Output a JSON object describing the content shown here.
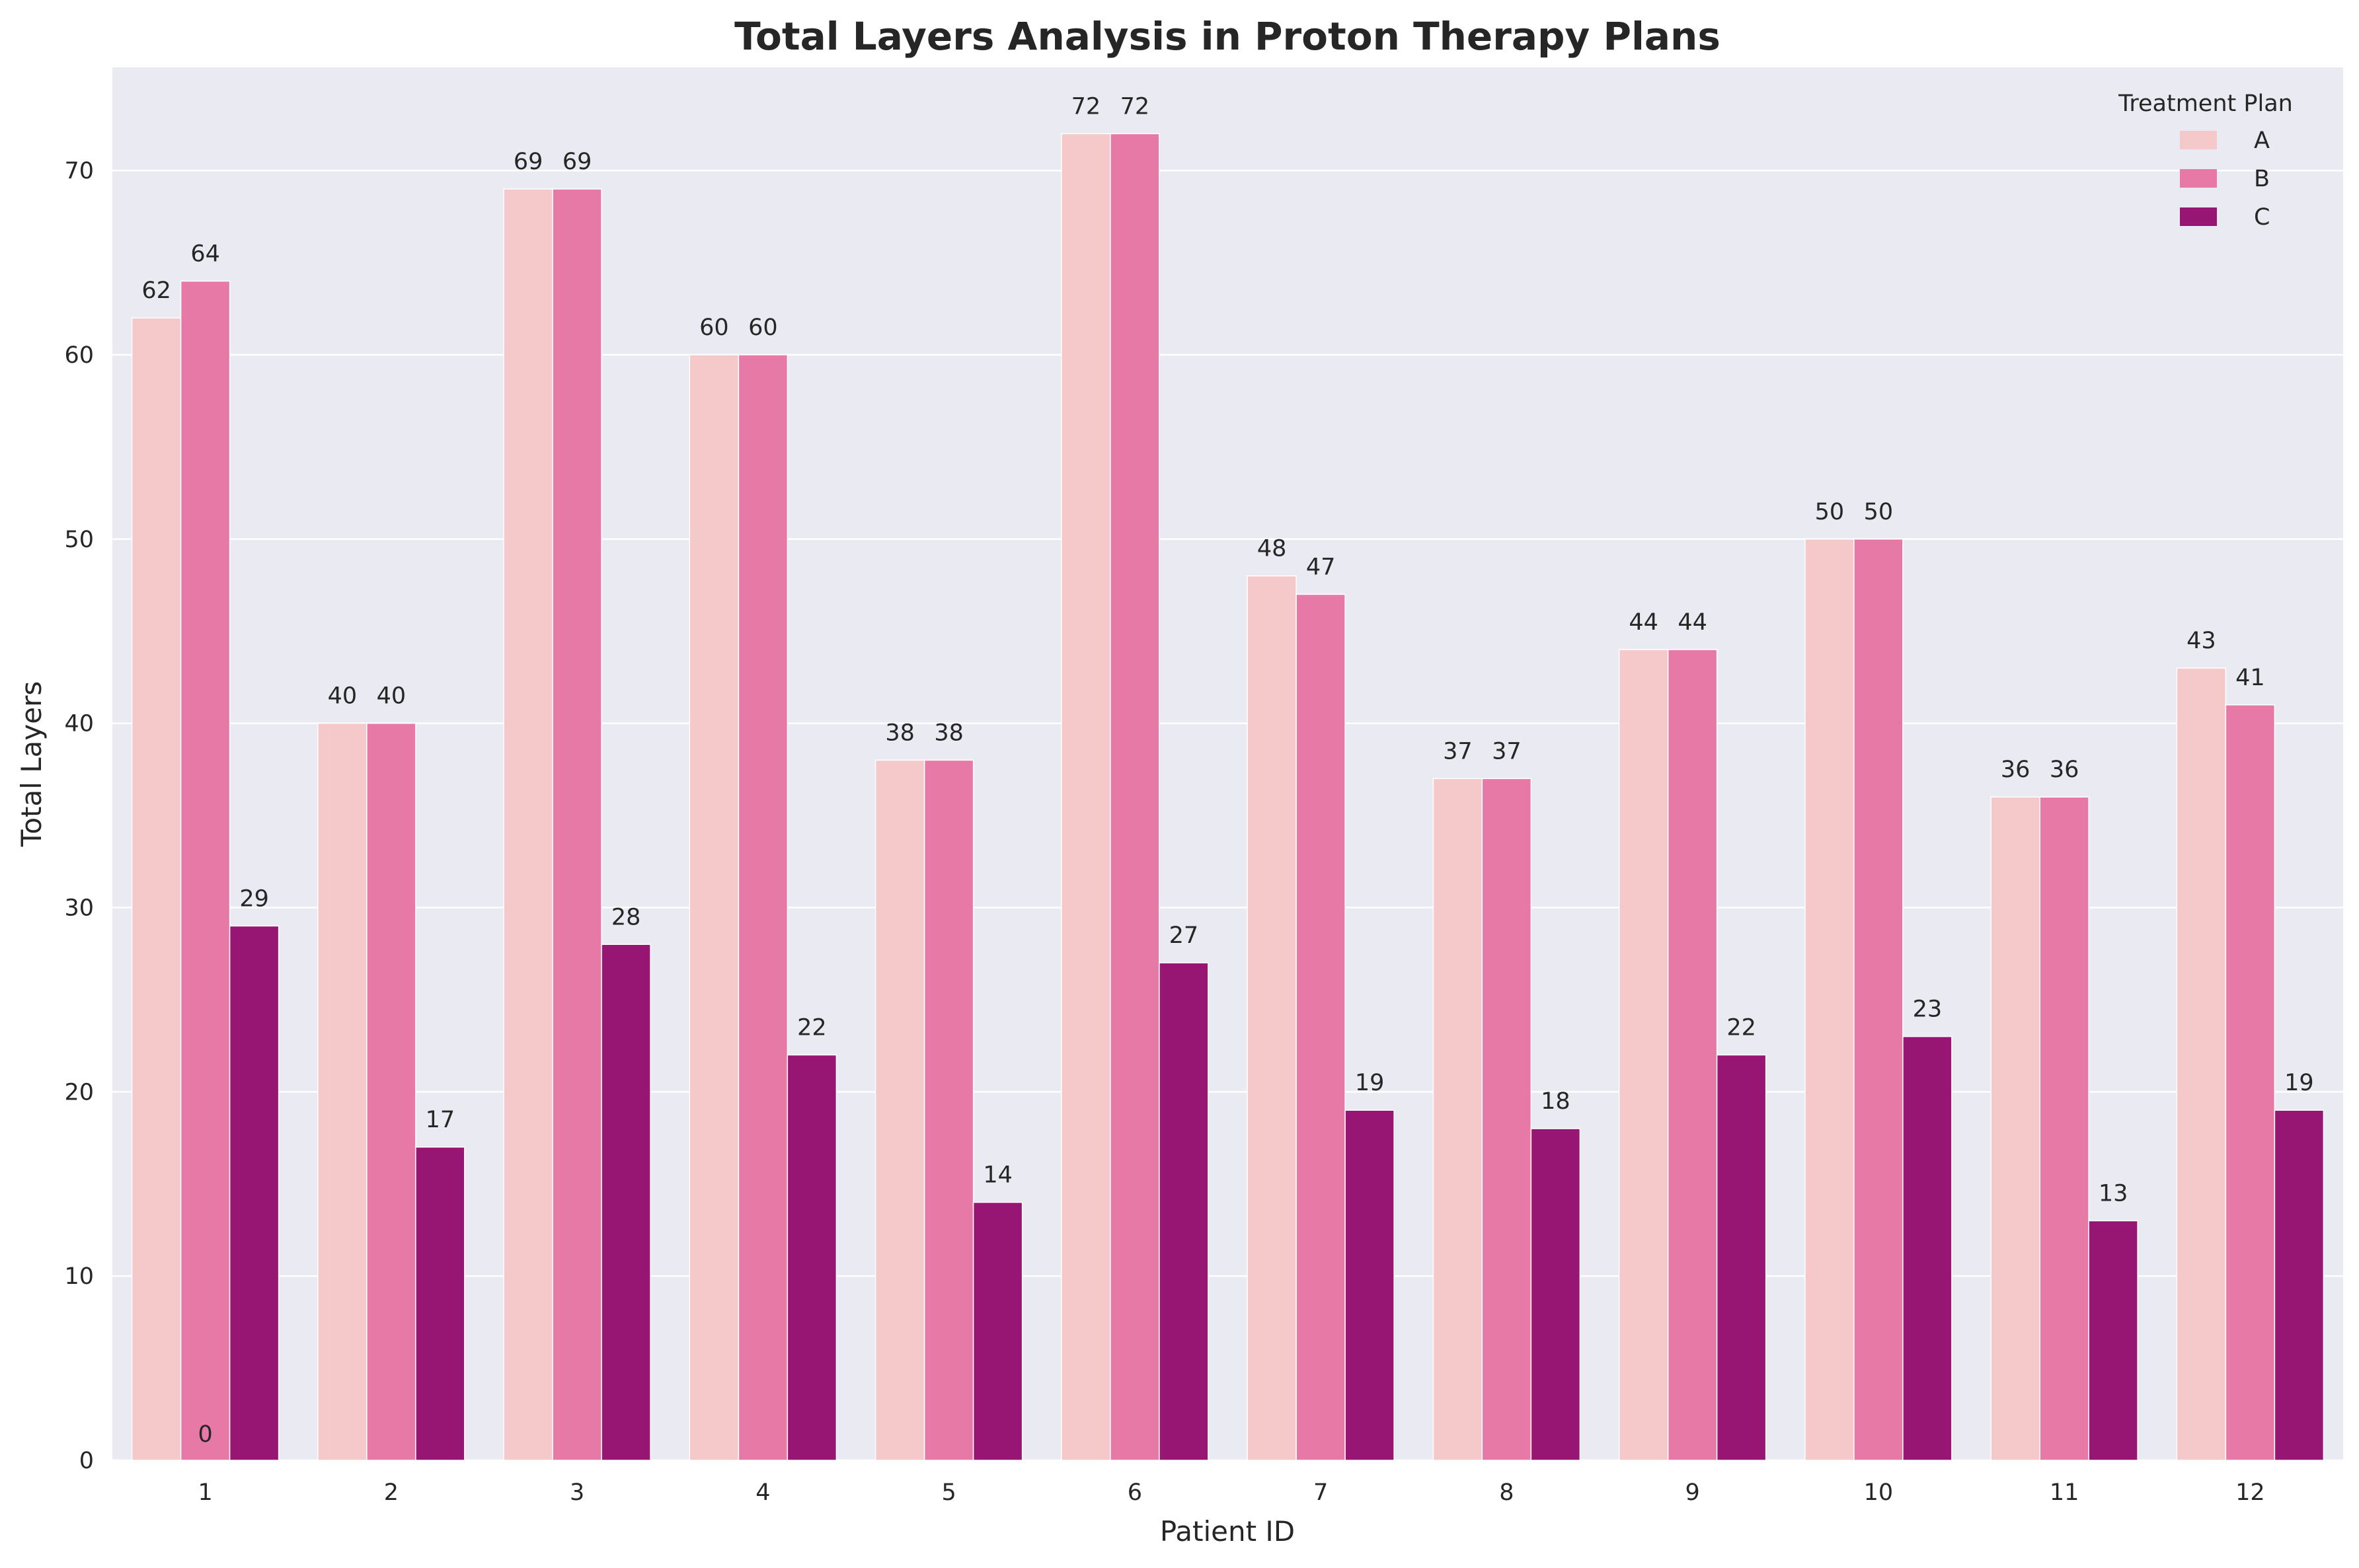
{
  "chart_data": {
    "type": "bar",
    "title": "Total Layers Analysis in Proton Therapy Plans",
    "xlabel": "Patient ID",
    "ylabel": "Total Layers",
    "categories": [
      "1",
      "2",
      "3",
      "4",
      "5",
      "6",
      "7",
      "8",
      "9",
      "10",
      "11",
      "12"
    ],
    "ylim": [
      0,
      75.6
    ],
    "yticks": [
      "0",
      "10",
      "20",
      "30",
      "40",
      "50",
      "60",
      "70"
    ],
    "grid": true,
    "legend": {
      "title": "Treatment Plan",
      "placement": "top-right"
    },
    "series": [
      {
        "name": "A",
        "color": "#f5c8c9",
        "values": [
          62,
          40,
          69,
          60,
          38,
          72,
          48,
          37,
          44,
          50,
          36,
          43
        ]
      },
      {
        "name": "B",
        "color": "#e679a6",
        "values": [
          64,
          40,
          69,
          60,
          38,
          72,
          47,
          37,
          44,
          50,
          36,
          41
        ]
      },
      {
        "name": "C",
        "color": "#981673",
        "values": [
          29,
          17,
          28,
          22,
          14,
          27,
          19,
          18,
          22,
          23,
          13,
          19
        ]
      }
    ],
    "annotations": [
      {
        "category": "1",
        "series": "B",
        "text": "0"
      }
    ]
  }
}
